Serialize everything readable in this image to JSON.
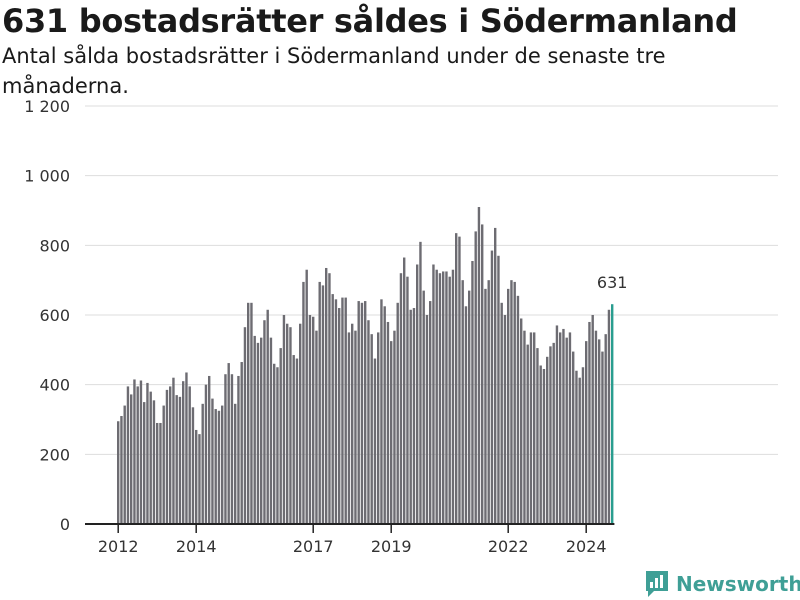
{
  "header": {
    "title": "631 bostadsrätter såldes i Södermanland",
    "subtitle": "Antal sålda bostadsrätter i Södermanland under de senaste tre månaderna."
  },
  "brand": {
    "name": "Newsworthy",
    "color": "#3f9f96"
  },
  "chart_data": {
    "type": "bar",
    "title": "631 bostadsrätter såldes i Södermanland",
    "subtitle": "Antal sålda bostadsrätter i Södermanland under de senaste tre månaderna.",
    "xlabel": "",
    "ylabel": "",
    "ylim": [
      0,
      1200
    ],
    "y_ticks": [
      0,
      200,
      400,
      600,
      800,
      1000,
      1200
    ],
    "y_tick_labels": [
      "0",
      "200",
      "400",
      "600",
      "800",
      "1 000",
      "1 200"
    ],
    "x_ticks": [
      "2012",
      "2014",
      "2017",
      "2019",
      "2022",
      "2024"
    ],
    "start_period": "2012-01",
    "period": "monthly, rolling 3-month total",
    "grid": true,
    "bar_color": "#6d6c72",
    "highlight_color": "#2a9d8f",
    "highlight_label": "631",
    "values": [
      295,
      310,
      340,
      395,
      372,
      415,
      395,
      412,
      350,
      405,
      380,
      355,
      290,
      290,
      340,
      385,
      395,
      420,
      370,
      365,
      410,
      435,
      395,
      335,
      270,
      258,
      345,
      400,
      425,
      360,
      330,
      325,
      340,
      430,
      462,
      430,
      345,
      425,
      465,
      565,
      635,
      635,
      540,
      520,
      535,
      585,
      615,
      535,
      460,
      450,
      505,
      600,
      575,
      565,
      485,
      475,
      575,
      695,
      730,
      600,
      595,
      555,
      695,
      685,
      735,
      720,
      660,
      645,
      620,
      650,
      650,
      550,
      575,
      555,
      640,
      635,
      640,
      585,
      545,
      475,
      550,
      645,
      625,
      580,
      525,
      555,
      635,
      720,
      765,
      710,
      615,
      620,
      745,
      810,
      670,
      600,
      640,
      745,
      730,
      720,
      725,
      725,
      710,
      730,
      835,
      825,
      700,
      625,
      670,
      755,
      840,
      910,
      860,
      675,
      700,
      785,
      850,
      770,
      635,
      600,
      675,
      700,
      695,
      655,
      590,
      555,
      515,
      550,
      550,
      505,
      455,
      445,
      480,
      510,
      520,
      570,
      550,
      560,
      535,
      550,
      495,
      440,
      420,
      450,
      525,
      580,
      600,
      555,
      530,
      495,
      545,
      615,
      631
    ]
  }
}
